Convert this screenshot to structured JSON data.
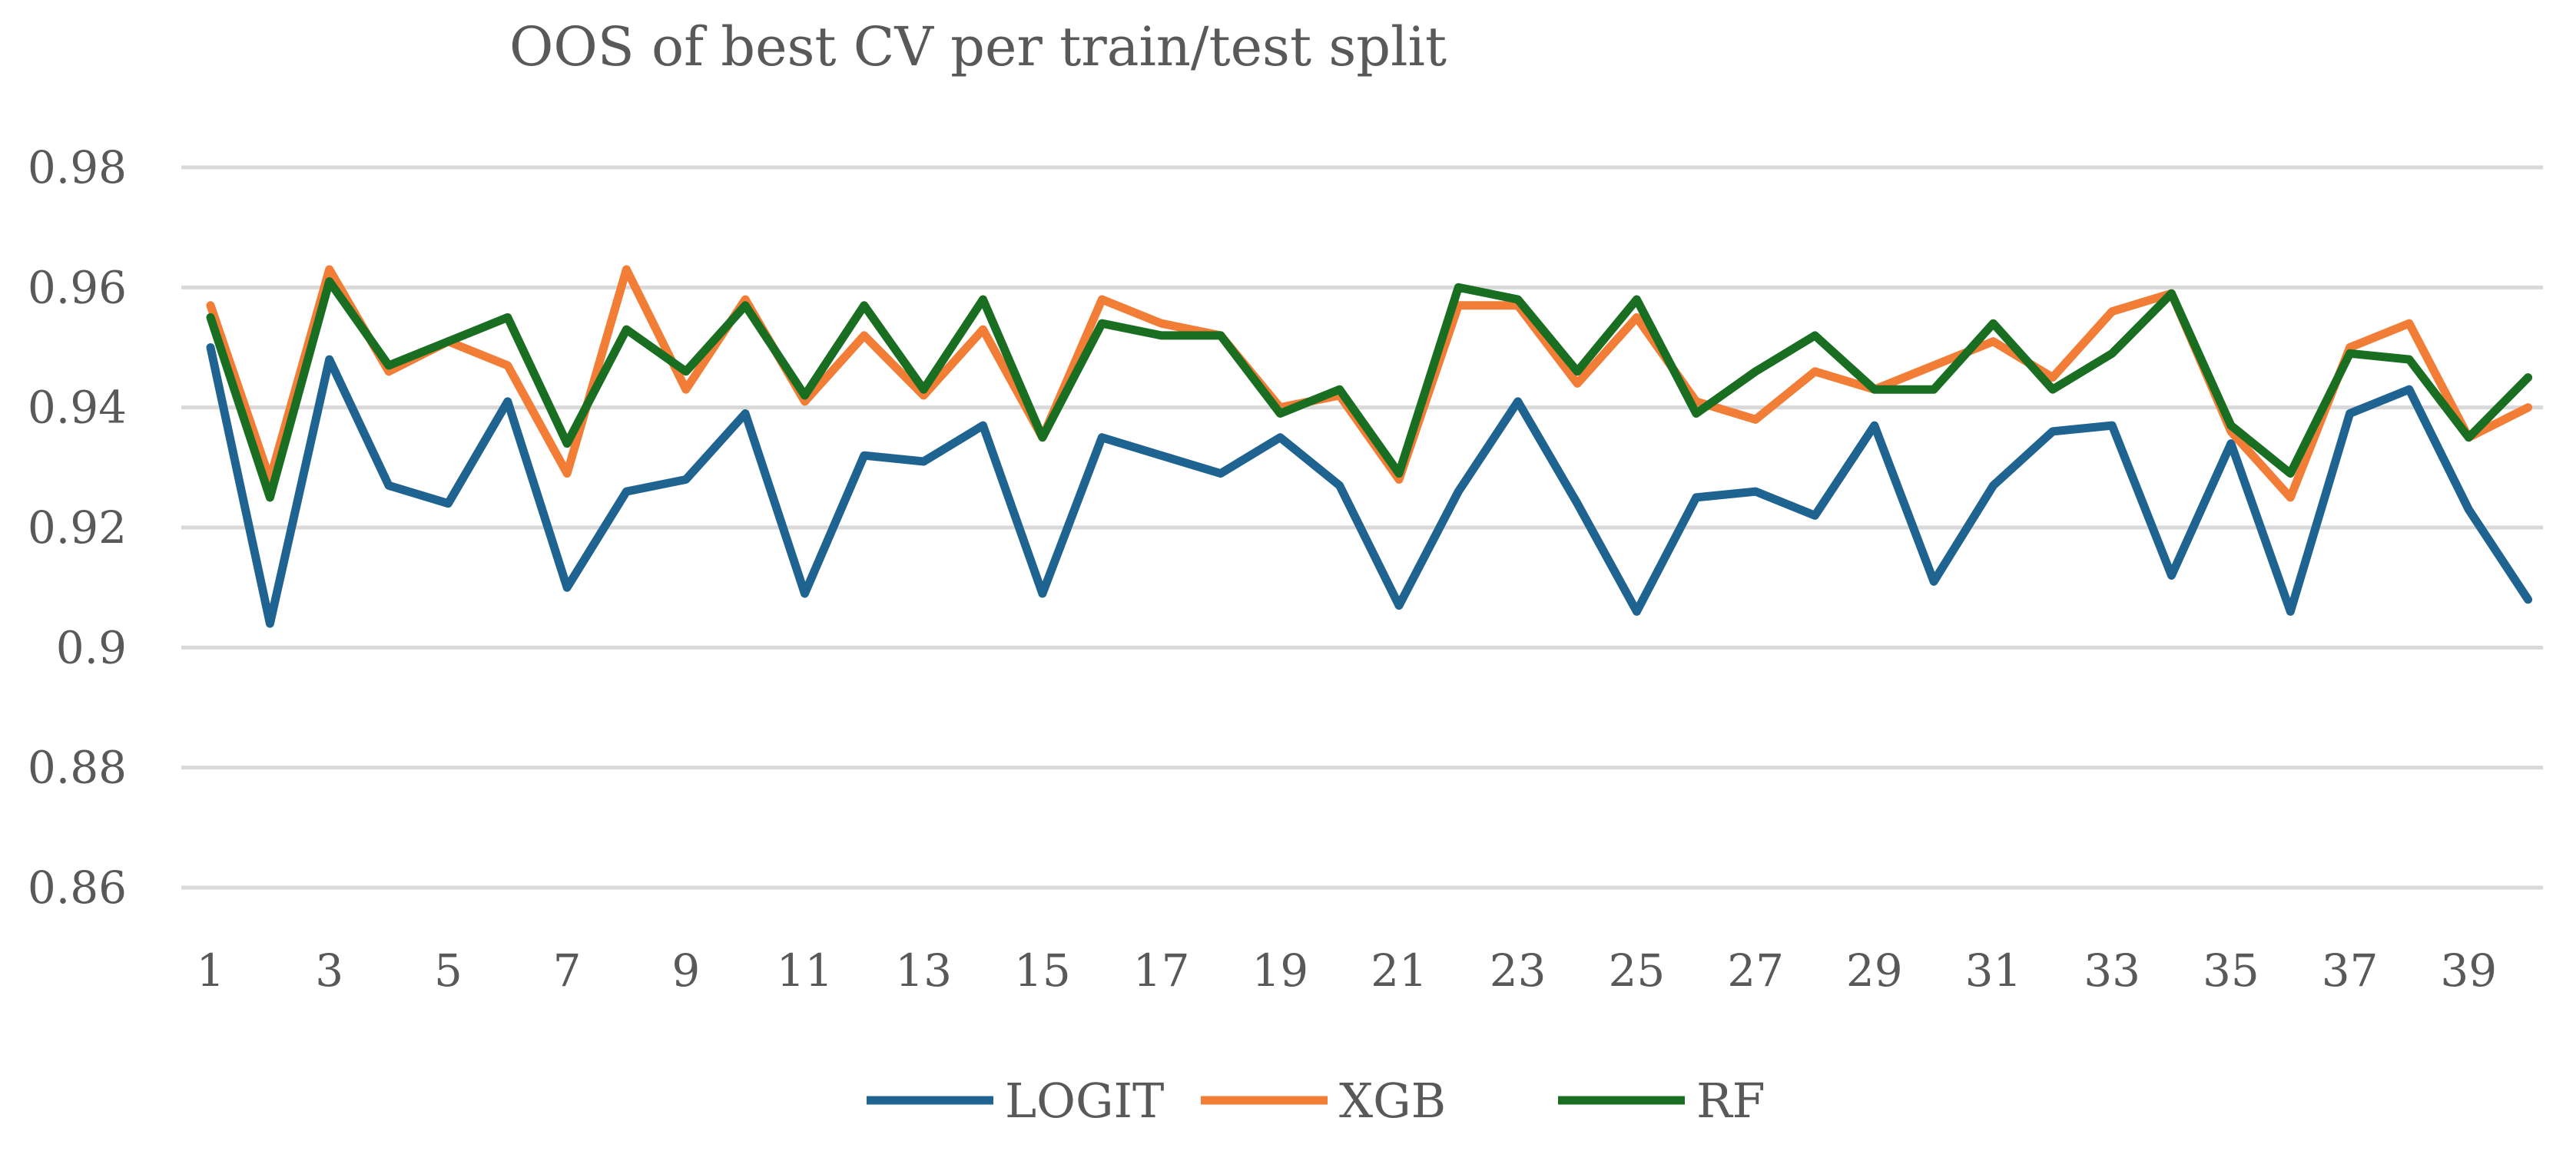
{
  "chart_data": {
    "type": "line",
    "title": "OOS of best CV per train/test split",
    "xlabel": "",
    "ylabel": "",
    "ylim": [
      0.86,
      0.98
    ],
    "y_ticks": [
      0.86,
      0.88,
      0.9,
      0.92,
      0.94,
      0.96,
      0.98
    ],
    "y_tick_labels": [
      "0.86",
      "0.88",
      "0.9",
      "0.92",
      "0.94",
      "0.96",
      "0.98"
    ],
    "x": [
      1,
      2,
      3,
      4,
      5,
      6,
      7,
      8,
      9,
      10,
      11,
      12,
      13,
      14,
      15,
      16,
      17,
      18,
      19,
      20,
      21,
      22,
      23,
      24,
      25,
      26,
      27,
      28,
      29,
      30,
      31,
      32,
      33,
      34,
      35,
      36,
      37,
      38,
      39,
      40
    ],
    "x_tick_labels": [
      "1",
      "3",
      "5",
      "7",
      "9",
      "11",
      "13",
      "15",
      "17",
      "19",
      "21",
      "23",
      "25",
      "27",
      "29",
      "31",
      "33",
      "35",
      "37",
      "39"
    ],
    "grid": true,
    "legend_position": "bottom",
    "series": [
      {
        "name": "LOGIT",
        "color": "#1f6391",
        "values": [
          0.95,
          0.904,
          0.948,
          0.927,
          0.924,
          0.941,
          0.91,
          0.926,
          0.928,
          0.939,
          0.909,
          0.932,
          0.931,
          0.937,
          0.909,
          0.935,
          0.932,
          0.929,
          0.935,
          0.927,
          0.907,
          0.926,
          0.941,
          0.924,
          0.906,
          0.925,
          0.926,
          0.922,
          0.937,
          0.911,
          0.927,
          0.936,
          0.937,
          0.912,
          0.934,
          0.906,
          0.939,
          0.943,
          0.923,
          0.908
        ]
      },
      {
        "name": "XGB",
        "color": "#f27d36",
        "values": [
          0.957,
          0.928,
          0.963,
          0.946,
          0.951,
          0.947,
          0.929,
          0.963,
          0.943,
          0.958,
          0.941,
          0.952,
          0.942,
          0.953,
          0.935,
          0.958,
          0.954,
          0.952,
          0.94,
          0.942,
          0.928,
          0.957,
          0.957,
          0.944,
          0.955,
          0.941,
          0.938,
          0.946,
          0.943,
          0.947,
          0.951,
          0.945,
          0.956,
          0.959,
          0.936,
          0.925,
          0.95,
          0.954,
          0.935,
          0.94
        ]
      },
      {
        "name": "RF",
        "color": "#1a6e22",
        "values": [
          0.955,
          0.925,
          0.961,
          0.947,
          0.951,
          0.955,
          0.934,
          0.953,
          0.946,
          0.957,
          0.942,
          0.957,
          0.943,
          0.958,
          0.935,
          0.954,
          0.952,
          0.952,
          0.939,
          0.943,
          0.929,
          0.96,
          0.958,
          0.946,
          0.958,
          0.939,
          0.946,
          0.952,
          0.943,
          0.943,
          0.954,
          0.943,
          0.949,
          0.959,
          0.937,
          0.929,
          0.949,
          0.948,
          0.935,
          0.945
        ]
      }
    ]
  }
}
